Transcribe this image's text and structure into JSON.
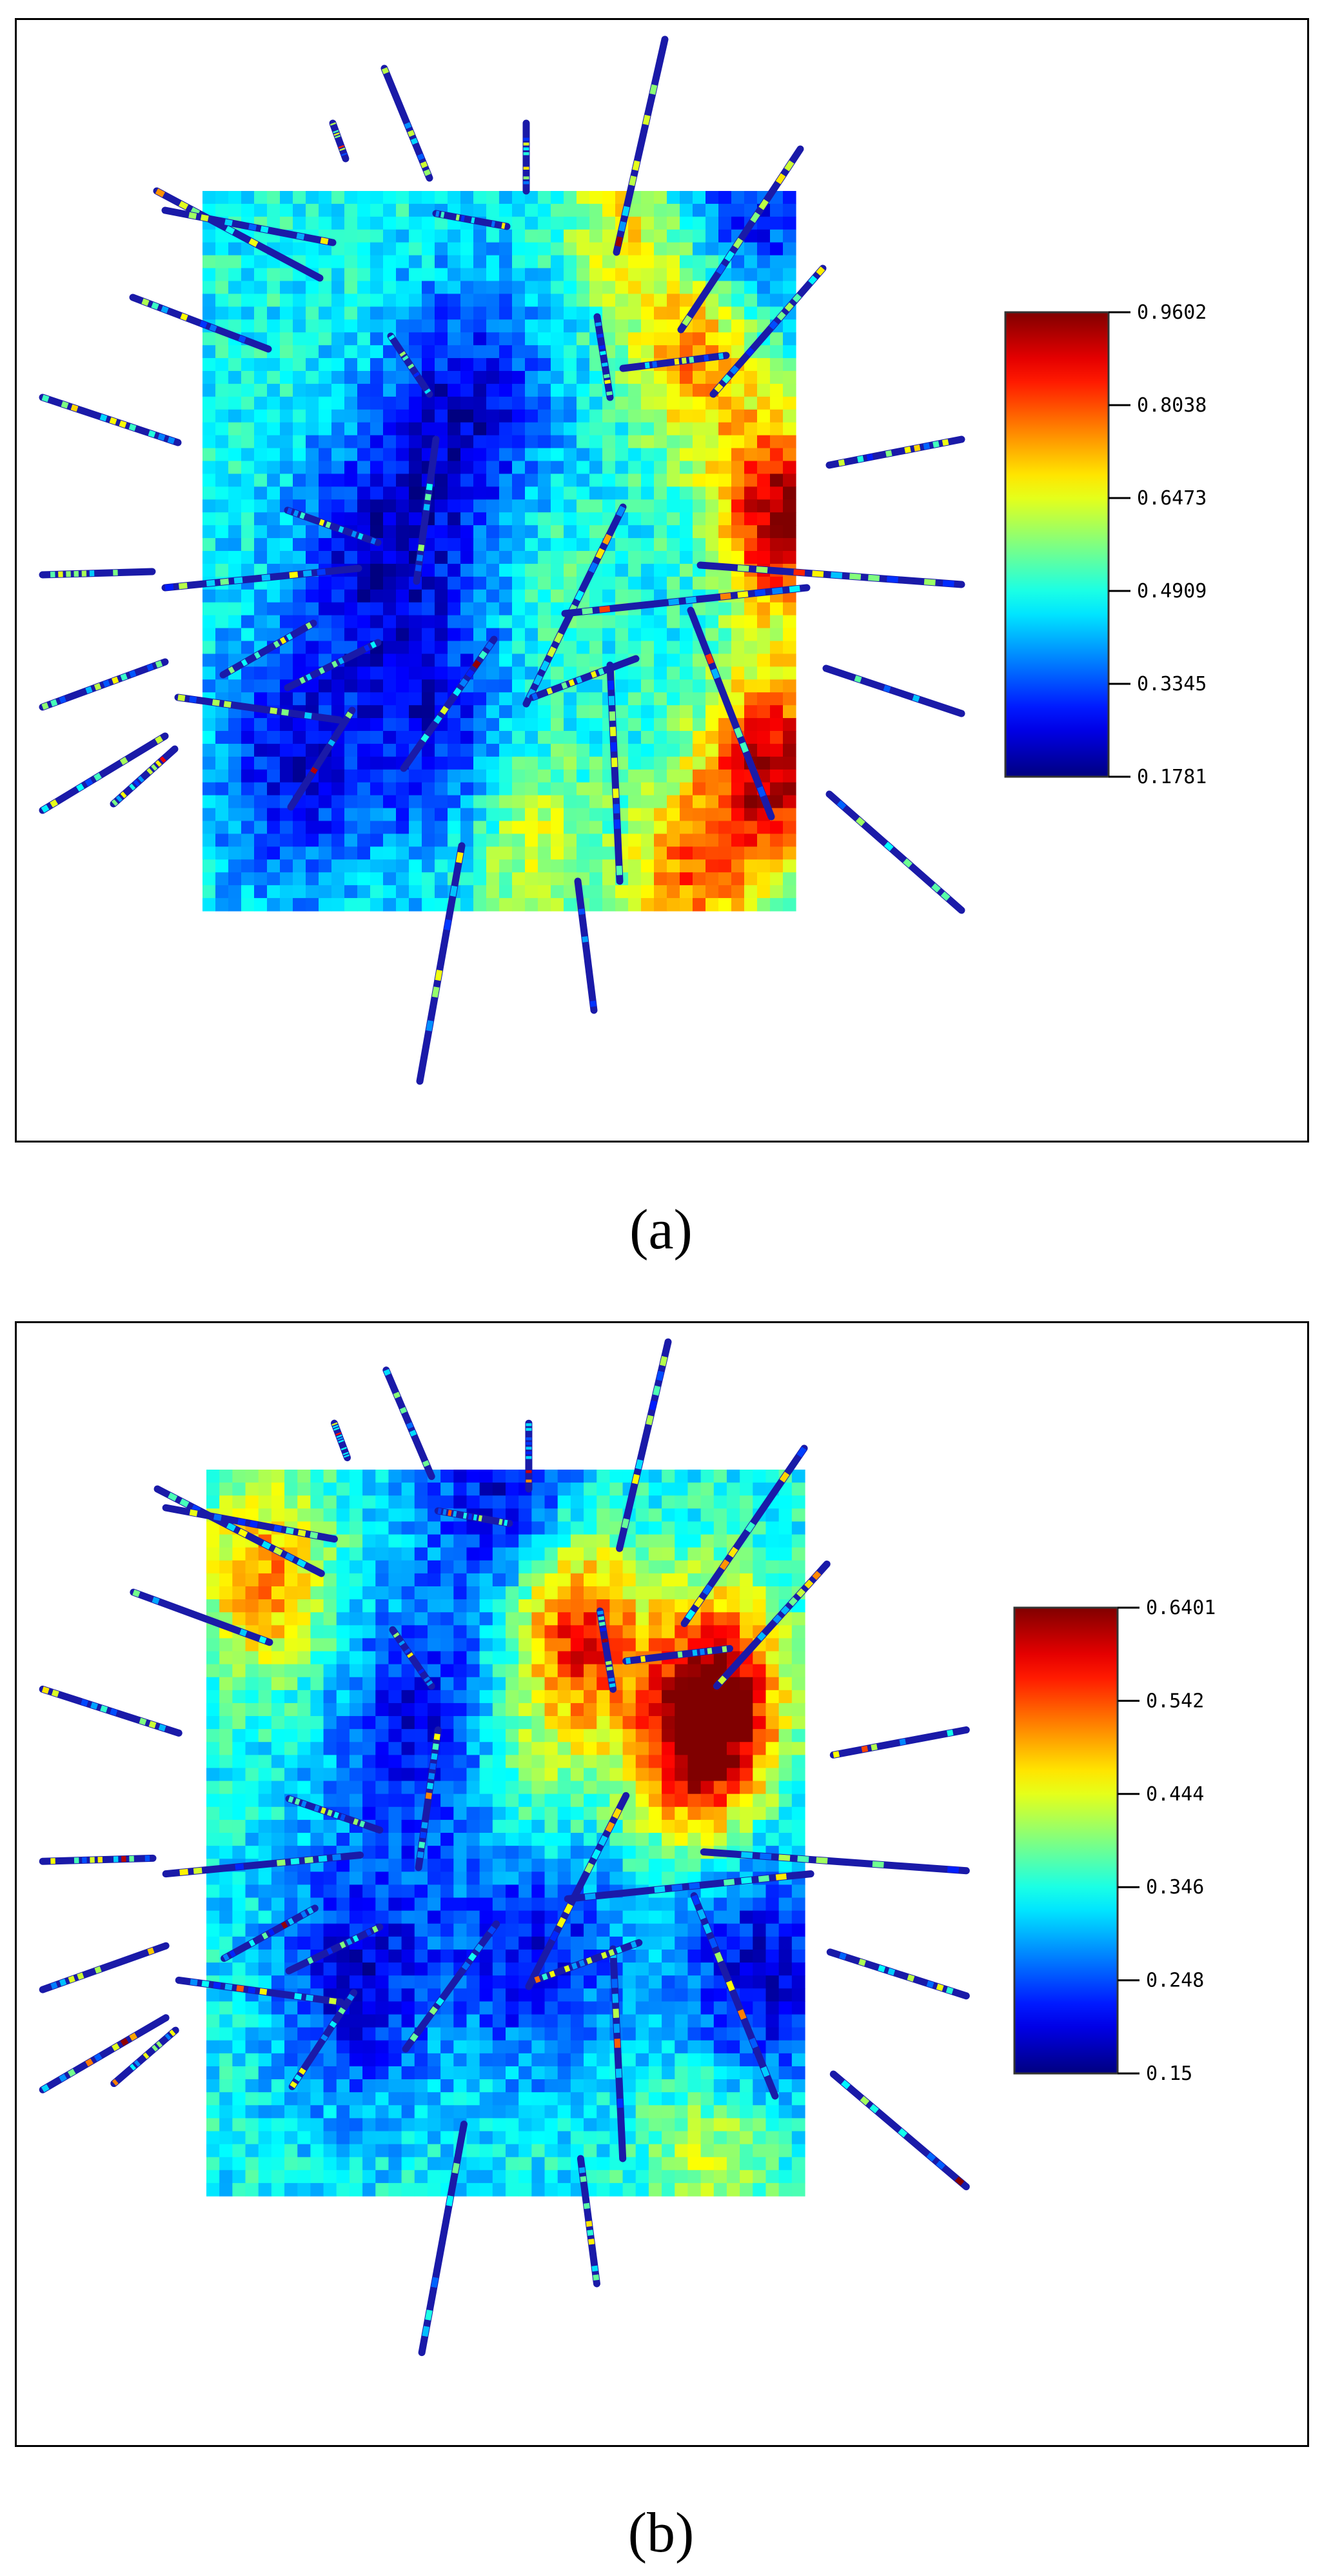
{
  "figure": {
    "captions": [
      "(a)",
      "(b)"
    ]
  },
  "chart_data": [
    {
      "type": "heatmap",
      "panel": "(a)",
      "colormap": "jet",
      "colorbar": {
        "ticks": [
          "0.9602",
          "0.8038",
          "0.6473",
          "0.4909",
          "0.3345",
          "0.1781"
        ],
        "min": 0.1781,
        "max": 0.9602
      },
      "hotspots": [
        {
          "x": 0.98,
          "y": 0.45,
          "v": 1.0
        },
        {
          "x": 0.96,
          "y": 0.8,
          "v": 0.95
        },
        {
          "x": 0.84,
          "y": 0.22,
          "v": 0.8
        },
        {
          "x": 0.72,
          "y": 0.04,
          "v": 0.65
        },
        {
          "x": 0.82,
          "y": 0.95,
          "v": 0.75
        },
        {
          "x": 0.55,
          "y": 0.9,
          "v": 0.6
        },
        {
          "x": 0.6,
          "y": 0.55,
          "v": 0.45
        },
        {
          "x": 0.2,
          "y": 0.05,
          "v": 0.4
        }
      ],
      "coldspots": [
        {
          "x": 0.3,
          "y": 0.5,
          "v": 0.1
        },
        {
          "x": 0.45,
          "y": 0.3,
          "v": 0.1
        },
        {
          "x": 0.15,
          "y": 0.8,
          "v": 0.12
        },
        {
          "x": 0.4,
          "y": 0.75,
          "v": 0.15
        },
        {
          "x": 0.9,
          "y": 0.05,
          "v": 0.1
        }
      ]
    },
    {
      "type": "heatmap",
      "panel": "(b)",
      "colormap": "jet",
      "colorbar": {
        "ticks": [
          "0.6401",
          "0.542",
          "0.444",
          "0.346",
          "0.248",
          "0.15"
        ],
        "min": 0.15,
        "max": 0.6401
      },
      "hotspots": [
        {
          "x": 0.82,
          "y": 0.38,
          "v": 0.95
        },
        {
          "x": 0.62,
          "y": 0.22,
          "v": 0.9
        },
        {
          "x": 0.1,
          "y": 0.15,
          "v": 0.75
        },
        {
          "x": 0.87,
          "y": 0.28,
          "v": 0.75
        },
        {
          "x": 0.85,
          "y": 0.95,
          "v": 0.6
        },
        {
          "x": 0.55,
          "y": 0.45,
          "v": 0.55
        }
      ],
      "coldspots": [
        {
          "x": 0.35,
          "y": 0.35,
          "v": 0.12
        },
        {
          "x": 0.25,
          "y": 0.7,
          "v": 0.1
        },
        {
          "x": 0.55,
          "y": 0.65,
          "v": 0.1
        },
        {
          "x": 0.5,
          "y": 0.02,
          "v": 0.1
        },
        {
          "x": 0.92,
          "y": 0.7,
          "v": 0.08
        }
      ]
    }
  ]
}
